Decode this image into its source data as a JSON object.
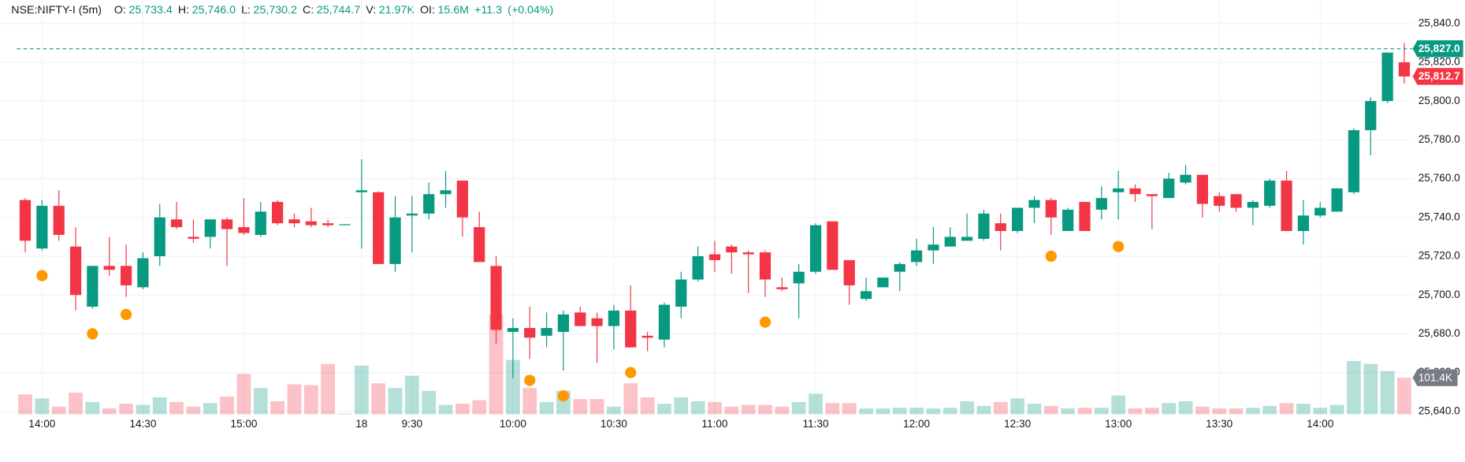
{
  "chart_data": {
    "type": "candlestick",
    "title": "NSE:NIFTY-I (5m)",
    "ohlc_legend": [
      {
        "label": "O:",
        "value": "25,733.4"
      },
      {
        "label": "H:",
        "value": "25,746.0"
      },
      {
        "label": "L:",
        "value": "25,730.2"
      },
      {
        "label": "C:",
        "value": "25,744.7"
      },
      {
        "label": "V:",
        "value": "21.97K"
      },
      {
        "label": "OI:",
        "value": "15.6M"
      }
    ],
    "change": "+11.3",
    "change_pct": "(+0.04%)",
    "categories": [
      null,
      "14:00",
      null,
      null,
      null,
      null,
      null,
      "14:30",
      null,
      null,
      null,
      null,
      null,
      "15:00",
      null,
      null,
      null,
      null,
      null,
      null,
      "18",
      null,
      null,
      "9:30",
      null,
      null,
      null,
      null,
      null,
      "10:00",
      null,
      null,
      null,
      null,
      null,
      "10:30",
      null,
      null,
      null,
      null,
      null,
      "11:00",
      null,
      null,
      null,
      null,
      null,
      "11:30",
      null,
      null,
      null,
      null,
      null,
      "12:00",
      null,
      null,
      null,
      null,
      null,
      "12:30",
      null,
      null,
      null,
      null,
      null,
      "13:00",
      null,
      null,
      null,
      null,
      null,
      "13:30",
      null,
      null,
      null,
      null,
      null,
      "14:00",
      null,
      null,
      null,
      null,
      null
    ],
    "open": [
      25749,
      25724,
      25746,
      25725,
      25694,
      25715,
      25715,
      25704,
      25720,
      25739,
      25730,
      25730,
      25739,
      25735,
      25731,
      25748,
      25739,
      25738,
      25737,
      25736,
      25753,
      25753,
      25716,
      25741,
      25742,
      25752,
      25759,
      25735,
      25715,
      25681,
      25683,
      25679,
      25681,
      25691,
      25688,
      25684,
      25692,
      25679,
      25677,
      25694,
      25708,
      25721,
      25725,
      25722,
      25722,
      25704,
      25706,
      25712,
      25738,
      25718,
      25698,
      25704,
      25712,
      25717,
      25723,
      25725,
      25728,
      25729,
      25737,
      25733,
      25745,
      25749,
      25733,
      25748,
      25744,
      25753,
      25755,
      25752,
      25750,
      25758,
      25762,
      25751,
      25752,
      25745,
      25746,
      25759,
      25733,
      25741,
      25743,
      25753,
      25785,
      25800,
      25820
    ],
    "high": [
      25750,
      25749,
      25754,
      25735,
      25715,
      25730,
      25726,
      25722,
      25747,
      25748,
      25739,
      25739,
      25740,
      25750,
      25748,
      25749,
      25742,
      25745,
      25739,
      25736.5,
      25770,
      25753.5,
      25751,
      25751,
      25758,
      25764,
      25759,
      25743,
      25720,
      25688,
      25694,
      25691,
      25692,
      25694,
      25691,
      25695,
      25705,
      25681,
      25696,
      25712,
      25725,
      25728,
      25726,
      25723,
      25723,
      25709,
      25716,
      25737,
      25738,
      25718,
      25709,
      25709,
      25717,
      25729,
      25735,
      25735,
      25742,
      25744,
      25742,
      25745,
      25751,
      25750,
      25745,
      25748,
      25756,
      25764,
      25757,
      25752,
      25763,
      25767,
      25762,
      25753,
      25752,
      25749,
      25760,
      25764,
      25749,
      25748,
      25755,
      25786,
      25802,
      25825,
      25830
    ],
    "low": [
      25722,
      25723,
      25728,
      25692,
      25693,
      25710,
      25699,
      25703,
      25715,
      25734,
      25727,
      25724,
      25715,
      25731,
      25730,
      25736,
      25735,
      25735,
      25735,
      25736,
      25724,
      25716,
      25712,
      25722,
      25739,
      25745,
      25730,
      25717,
      25675,
      25657,
      25667,
      25673,
      25661,
      25684,
      25665,
      25672,
      25673,
      25671,
      25673,
      25688,
      25707,
      25712,
      25711,
      25701,
      25699,
      25702,
      25688,
      25711,
      25713,
      25695,
      25697,
      25704,
      25702,
      25715,
      25716,
      25725,
      25728,
      25728,
      25723,
      25732,
      25737,
      25731,
      25733,
      25733,
      25739,
      25739,
      25748,
      25734,
      25750,
      25757,
      25740,
      25743,
      25743,
      25736,
      25745,
      25733,
      25726,
      25740,
      25743,
      25752,
      25772,
      25799,
      25809
    ],
    "close": [
      25728,
      25746,
      25731,
      25700,
      25715,
      25713,
      25705,
      25719,
      25740,
      25735,
      25729,
      25739,
      25734,
      25732,
      25743,
      25737,
      25737,
      25736,
      25736,
      25736.5,
      25754,
      25716,
      25740,
      25742,
      25752,
      25754,
      25740,
      25717,
      25682,
      25683,
      25678,
      25683,
      25690,
      25684,
      25684,
      25692,
      25673,
      25678,
      25695,
      25708,
      25720,
      25718,
      25722,
      25721,
      25708,
      25703,
      25712,
      25736,
      25713,
      25705,
      25702,
      25709,
      25716,
      25723,
      25726,
      25730,
      25730,
      25742,
      25733,
      25745,
      25749,
      25740,
      25744,
      25733,
      25750,
      25755,
      25752,
      25751,
      25760,
      25762,
      25747,
      25746,
      25745,
      25748,
      25759,
      25733,
      25741,
      25745,
      25755,
      25785,
      25800,
      25825,
      25812.7
    ],
    "volume": [
      55,
      44,
      21,
      60,
      34,
      16,
      29,
      26,
      47,
      34,
      21,
      31,
      49,
      112,
      73,
      36,
      83,
      81,
      140,
      2,
      135,
      86,
      73,
      107,
      65,
      26,
      29,
      39,
      278,
      151,
      73,
      34,
      65,
      42,
      42,
      21,
      86,
      47,
      29,
      47,
      36,
      34,
      21,
      26,
      26,
      21,
      34,
      57,
      31,
      31,
      16,
      16,
      18,
      18,
      16,
      18,
      36,
      23,
      34,
      44,
      29,
      23,
      16,
      18,
      18,
      52,
      16,
      18,
      31,
      36,
      21,
      16,
      16,
      18,
      23,
      31,
      29,
      18,
      26,
      148,
      140,
      120,
      101.4
    ],
    "signals": [
      null,
      25710,
      null,
      null,
      25680,
      null,
      25690,
      null,
      null,
      null,
      null,
      null,
      null,
      null,
      null,
      null,
      null,
      null,
      null,
      null,
      null,
      null,
      null,
      null,
      null,
      null,
      null,
      null,
      null,
      null,
      25656,
      null,
      25648,
      null,
      null,
      null,
      25660,
      null,
      null,
      null,
      null,
      null,
      null,
      null,
      25686,
      null,
      null,
      null,
      null,
      null,
      null,
      null,
      null,
      null,
      null,
      null,
      null,
      null,
      null,
      null,
      null,
      25720,
      null,
      null,
      null,
      25725,
      null,
      null,
      null,
      null,
      null,
      null,
      null,
      null,
      null,
      null,
      null,
      null,
      null,
      null,
      null,
      null,
      null
    ],
    "up_color": "#089981",
    "down_color": "#f23645",
    "signal_color": "#ff9800",
    "ylim": [
      25640,
      25840
    ],
    "yticks": [
      {
        "value": 25640,
        "label": "25,640.0"
      },
      {
        "value": 25660,
        "label": "25,660.0"
      },
      {
        "value": 25680,
        "label": "25,680.0"
      },
      {
        "value": 25700,
        "label": "25,700.0"
      },
      {
        "value": 25720,
        "label": "25,720.0"
      },
      {
        "value": 25740,
        "label": "25,740.0"
      },
      {
        "value": 25760,
        "label": "25,760.0"
      },
      {
        "value": 25780,
        "label": "25,780.0"
      },
      {
        "value": 25800,
        "label": "25,800.0"
      },
      {
        "value": 25820,
        "label": "25,820.0"
      },
      {
        "value": 25840,
        "label": "25,840.0"
      }
    ],
    "price_tags": [
      {
        "value": 25827,
        "label": "25,827.0",
        "color": "#089981",
        "line": true
      },
      {
        "value": 25812.7,
        "label": "25,812.7",
        "color": "#f23645",
        "line": false
      }
    ],
    "volume_tag": {
      "value": 101.4,
      "label": "101.4K",
      "color": "#787b86"
    },
    "grid": true
  }
}
